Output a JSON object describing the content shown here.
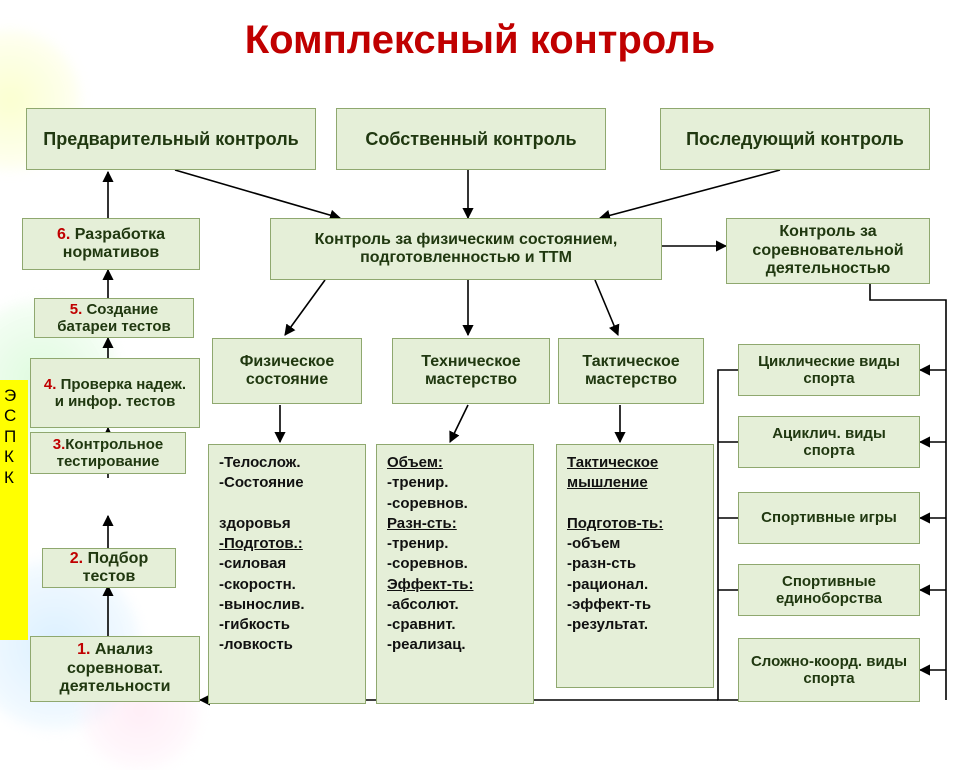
{
  "title": "Комплексный контроль",
  "colors": {
    "box_bg": "#e5efd8",
    "box_border": "#8fa86f",
    "title": "#c00000",
    "accent_num": "#c00000",
    "yellow": "#ffff00",
    "bg": "#ffffff"
  },
  "top": {
    "a": "Предварительный контроль",
    "b": "Собственный контроль",
    "c": "Последующий контроль"
  },
  "level2": {
    "phys_ttm": "Контроль за физическим состоянием, подготовленностью и ТТМ",
    "compet": "Контроль за соревновательной деятельностью"
  },
  "level3": {
    "a": "Физическое состояние",
    "b": "Техническое мастерство",
    "c": "Тактическое мастерство"
  },
  "steps": {
    "s6": {
      "n": "6.",
      "t": "Разработка нормативов"
    },
    "s5": {
      "n": "5.",
      "t": "Создание батареи тестов"
    },
    "s4": {
      "n": "4.",
      "t": "Проверка надеж. и инфор. тестов"
    },
    "s3": {
      "n": "3.",
      "t": "Контрольное тестирование"
    },
    "s2": {
      "n": "2.",
      "t": "Подбор тестов"
    },
    "s1": {
      "n": "1.",
      "t": "Анализ соревноват. деятельности"
    }
  },
  "list_a": {
    "lines": [
      "-Телослож.",
      "-Состояние",
      "",
      "здоровья",
      "-Подготов.:",
      "-силовая",
      "-скоростн.",
      "-вынослив.",
      "-гибкость",
      "-ловкость"
    ],
    "underline_idx": [
      4
    ]
  },
  "list_b": {
    "lines": [
      "Объем:",
      "-тренир.",
      "-соревнов.",
      "Разн-сть:",
      "-тренир.",
      "-соревнов.",
      "Эффект-ть:",
      "-абсолют.",
      "-сравнит.",
      "-реализац."
    ],
    "underline_idx": [
      0,
      3,
      6
    ]
  },
  "list_c": {
    "lines": [
      "Тактическое",
      "мышление",
      "",
      "Подготов-ть:",
      "-объем",
      "-разн-сть",
      "-рационал.",
      "-эффект-ть",
      "-результат."
    ],
    "underline_idx": [
      0,
      1,
      3
    ]
  },
  "right": {
    "r1": "Циклические виды спорта",
    "r2": "Ациклич. виды спорта",
    "r3": "Спортивные игры",
    "r4": "Спортивные единоборства",
    "r5": "Сложно-коорд. виды спорта"
  },
  "side_letters": "Э\nС\nП\nК\nК"
}
